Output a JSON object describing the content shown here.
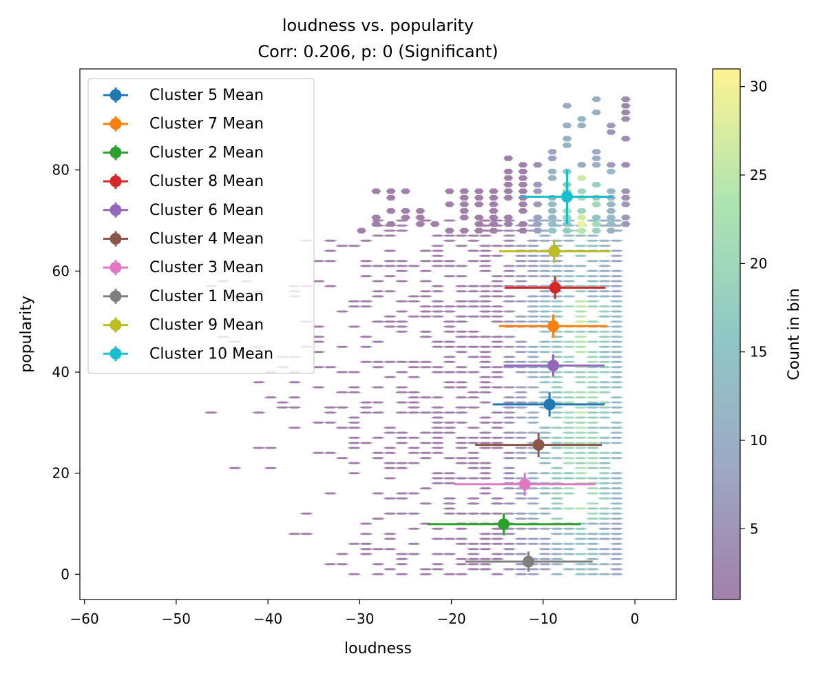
{
  "chart_data": {
    "type": "scatter",
    "title": "loudness vs. popularity",
    "subtitle": "Corr: 0.206, p: 0 (Significant)",
    "xlabel": "loudness",
    "ylabel": "popularity",
    "xlim": [
      -60.5,
      4.5
    ],
    "ylim": [
      -5,
      100
    ],
    "xticks": [
      -60,
      -50,
      -40,
      -30,
      -20,
      -10,
      0
    ],
    "xtick_labels": [
      "−60",
      "−50",
      "−40",
      "−30",
      "−20",
      "−10",
      "0"
    ],
    "yticks": [
      0,
      20,
      40,
      60,
      80
    ],
    "ytick_labels": [
      "0",
      "20",
      "40",
      "60",
      "80"
    ],
    "grid": false,
    "legend_position": "top-left",
    "background": "hexbin density of loudness vs. popularity",
    "colorbar": {
      "label": "Count in bin",
      "range": [
        1,
        31
      ],
      "ticks": [
        5,
        10,
        15,
        20,
        25,
        30
      ],
      "tick_labels": [
        "5",
        "10",
        "15",
        "20",
        "25",
        "30"
      ],
      "colormap": "viridis (alpha 0.5)"
    },
    "series": [
      {
        "name": "Cluster 5 Mean",
        "color": "#1f77b4",
        "x": -9.3,
        "y": 33.6,
        "xerr_low": -15.5,
        "xerr_high": -3.3,
        "yerr": 2.4
      },
      {
        "name": "Cluster 7 Mean",
        "color": "#ff7f0e",
        "x": -8.9,
        "y": 49.1,
        "xerr_low": -14.8,
        "xerr_high": -3.0,
        "yerr": 2.3
      },
      {
        "name": "Cluster 2 Mean",
        "color": "#2ca02c",
        "x": -14.3,
        "y": 9.9,
        "xerr_low": -22.6,
        "xerr_high": -5.9,
        "yerr": 2.2
      },
      {
        "name": "Cluster 8 Mean",
        "color": "#d62728",
        "x": -8.7,
        "y": 56.7,
        "xerr_low": -14.2,
        "xerr_high": -3.2,
        "yerr": 2.2
      },
      {
        "name": "Cluster 6 Mean",
        "color": "#9467bd",
        "x": -8.9,
        "y": 41.3,
        "xerr_low": -14.3,
        "xerr_high": -3.3,
        "yerr": 2.2
      },
      {
        "name": "Cluster 4 Mean",
        "color": "#8c564b",
        "x": -10.5,
        "y": 25.6,
        "xerr_low": -17.4,
        "xerr_high": -3.6,
        "yerr": 2.4
      },
      {
        "name": "Cluster 3 Mean",
        "color": "#e377c2",
        "x": -12.0,
        "y": 17.8,
        "xerr_low": -19.7,
        "xerr_high": -4.3,
        "yerr": 2.3
      },
      {
        "name": "Cluster 1 Mean",
        "color": "#7f7f7f",
        "x": -11.6,
        "y": 2.5,
        "xerr_low": -18.5,
        "xerr_high": -4.6,
        "yerr": 2.0
      },
      {
        "name": "Cluster 9 Mean",
        "color": "#bcbd22",
        "x": -8.8,
        "y": 63.9,
        "xerr_low": -14.8,
        "xerr_high": -2.7,
        "yerr": 2.3
      },
      {
        "name": "Cluster 10 Mean",
        "color": "#17becf",
        "x": -7.4,
        "y": 74.7,
        "xerr_low": -12.4,
        "xerr_high": -2.4,
        "yerr": 5.4
      }
    ]
  }
}
